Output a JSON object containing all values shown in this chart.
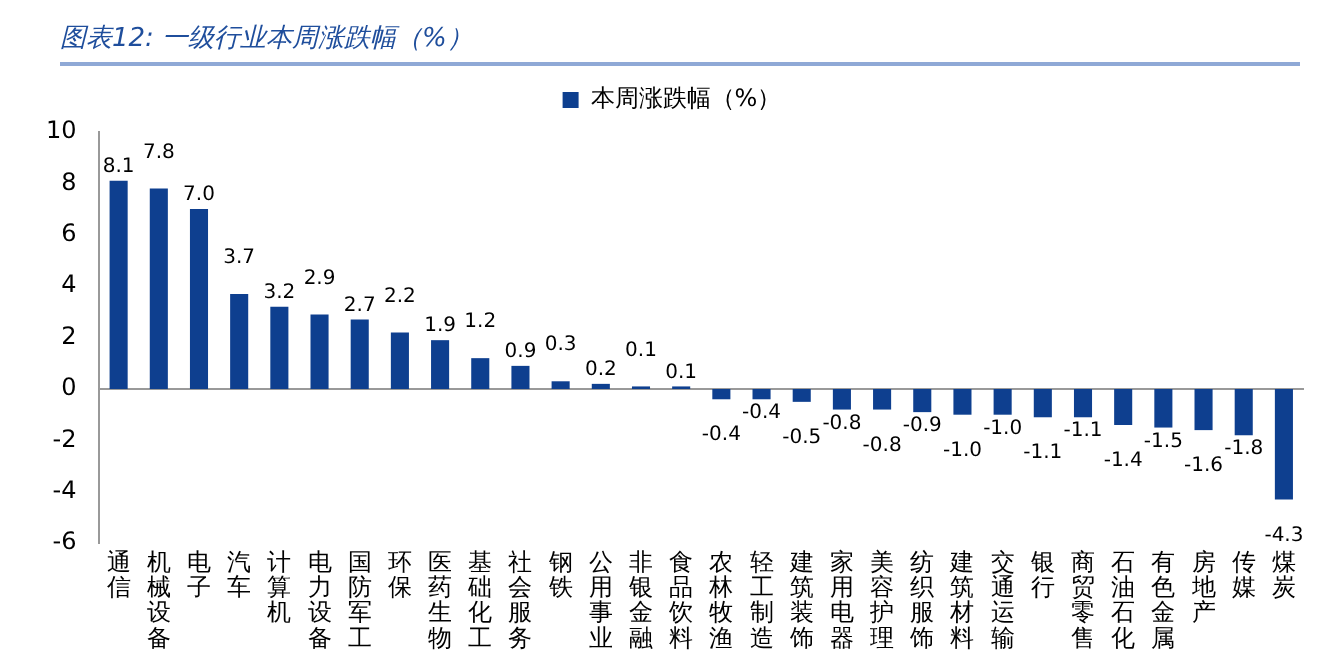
{
  "chart_data": {
    "type": "bar",
    "title": "图表12: 一级行业本周涨跌幅（%）",
    "categories": [
      "通信",
      "机械设备",
      "电子",
      "汽车",
      "计算机",
      "电力设备",
      "国防军工",
      "环保",
      "医药生物",
      "基础化工",
      "社会服务",
      "钢铁",
      "公用事业",
      "非银金融",
      "食品饮料",
      "农林牧渔",
      "轻工制造",
      "建筑装饰",
      "家用电器",
      "美容护理",
      "纺织服饰",
      "建筑材料",
      "交通运输",
      "银行",
      "商贸零售",
      "石油石化",
      "有色金属",
      "房地产",
      "传媒",
      "煤炭"
    ],
    "series": [
      {
        "name": "本周涨跌幅（%）",
        "color": "#0e3f8f",
        "values": [
          8.1,
          7.8,
          7.0,
          3.7,
          3.2,
          2.9,
          2.7,
          2.2,
          1.9,
          1.2,
          0.9,
          0.3,
          0.2,
          0.1,
          0.1,
          -0.4,
          -0.4,
          -0.5,
          -0.8,
          -0.8,
          -0.9,
          -1.0,
          -1.0,
          -1.1,
          -1.1,
          -1.4,
          -1.5,
          -1.6,
          -1.8,
          -4.3
        ]
      }
    ],
    "value_labels": [
      "8.1",
      "7.8",
      "7.0",
      "3.7",
      "3.2",
      "2.9",
      "2.7",
      "2.2",
      "1.9",
      "1.2",
      "0.9",
      "0.3",
      "0.2",
      "0.1",
      "0.1",
      "-0.4",
      "-0.4",
      "-0.5",
      "-0.8",
      "-0.8",
      "-0.9",
      "-1.0",
      "-1.0",
      "-1.1",
      "-1.1",
      "-1.4",
      "-1.5",
      "-1.6",
      "-1.8",
      "-4.3"
    ],
    "ylim": [
      -6,
      10
    ],
    "yticks": [
      -6,
      -4,
      -2,
      0,
      2,
      4,
      6,
      8,
      10
    ],
    "legend": "top"
  }
}
